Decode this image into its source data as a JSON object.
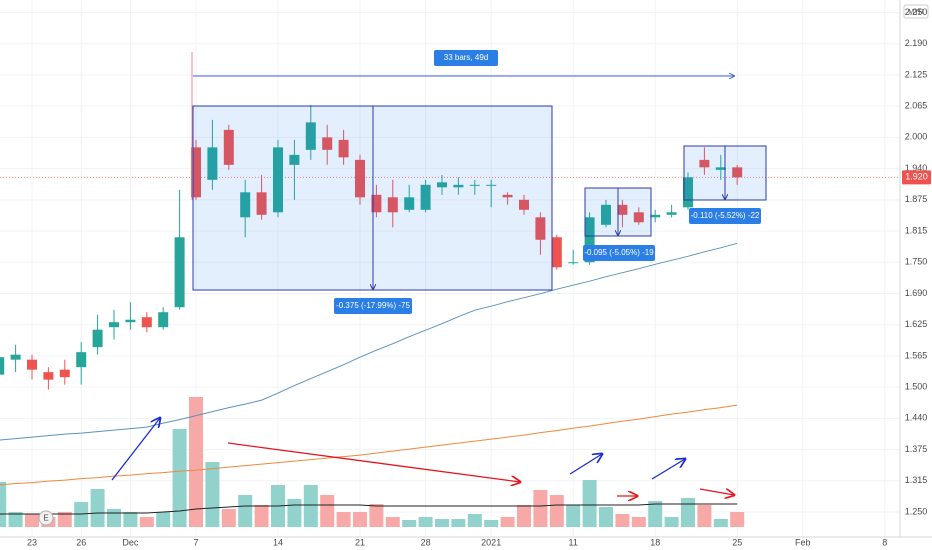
{
  "chart_data": {
    "type": "candlestick",
    "currency": "MYR",
    "categories": [
      null,
      null,
      "23",
      null,
      null,
      "26",
      null,
      null,
      "Dec",
      null,
      null,
      null,
      "7",
      null,
      null,
      null,
      null,
      "14",
      null,
      null,
      null,
      null,
      "21",
      null,
      null,
      null,
      "28",
      null,
      null,
      null,
      "2021",
      null,
      null,
      null,
      null,
      "11",
      null,
      null,
      null,
      null,
      "18",
      null,
      null,
      null,
      null,
      "25",
      null,
      null,
      null,
      "Feb",
      null,
      null,
      null,
      null,
      "8"
    ],
    "open": [
      1.525,
      1.555,
      1.555,
      1.53,
      1.535,
      1.54,
      1.58,
      1.62,
      1.63,
      1.64,
      1.62,
      1.66,
      1.98,
      1.915,
      2.015,
      1.84,
      1.89,
      1.85,
      1.945,
      1.975,
      2.0,
      1.995,
      1.955,
      1.885,
      1.88,
      1.855,
      1.855,
      1.9,
      1.9,
      1.905,
      1.905,
      1.885,
      1.875,
      1.84,
      1.8,
      1.75,
      1.75,
      1.825,
      1.865,
      1.85,
      1.84,
      1.845,
      1.86,
      1.955,
      1.935,
      1.94,
      null,
      null,
      null,
      null,
      null,
      null,
      null,
      null,
      null
    ],
    "high": [
      1.585,
      1.585,
      1.565,
      1.54,
      1.555,
      1.59,
      1.645,
      1.655,
      1.67,
      1.65,
      1.66,
      1.895,
      1.995,
      2.035,
      2.025,
      1.915,
      1.925,
      1.995,
      1.995,
      2.065,
      2.025,
      2.015,
      1.965,
      1.905,
      1.915,
      1.905,
      1.915,
      1.925,
      1.92,
      1.915,
      1.915,
      1.89,
      1.885,
      1.85,
      1.805,
      1.775,
      1.85,
      1.875,
      1.875,
      1.86,
      1.855,
      1.865,
      1.93,
      1.98,
      1.965,
      1.945,
      null,
      null,
      null,
      null,
      null,
      null,
      null,
      null,
      null
    ],
    "low": [
      1.48,
      1.53,
      1.515,
      1.495,
      1.505,
      1.505,
      1.565,
      1.595,
      1.615,
      1.61,
      1.615,
      1.655,
      1.875,
      1.895,
      1.935,
      1.8,
      1.835,
      1.84,
      1.875,
      1.955,
      1.945,
      1.945,
      1.865,
      1.84,
      1.82,
      1.85,
      1.85,
      1.885,
      1.885,
      1.885,
      1.86,
      1.865,
      1.845,
      1.765,
      1.735,
      1.745,
      1.745,
      1.82,
      1.82,
      1.825,
      1.83,
      1.84,
      1.855,
      1.925,
      1.915,
      1.905,
      null,
      null,
      null,
      null,
      null,
      null,
      null,
      null,
      null
    ],
    "close": [
      1.56,
      1.565,
      1.535,
      1.515,
      1.52,
      1.57,
      1.615,
      1.63,
      1.635,
      1.62,
      1.65,
      1.8,
      1.88,
      1.98,
      1.945,
      1.89,
      1.845,
      1.98,
      1.965,
      2.03,
      1.975,
      1.96,
      1.88,
      1.85,
      1.85,
      1.88,
      1.905,
      1.91,
      1.905,
      1.905,
      1.905,
      1.88,
      1.855,
      1.795,
      1.74,
      1.75,
      1.84,
      1.865,
      1.845,
      1.83,
      1.845,
      1.85,
      1.92,
      1.94,
      1.94,
      1.92,
      null,
      null,
      null,
      null,
      null,
      null,
      null,
      null,
      null
    ],
    "up_color": "#26a69a",
    "down_color": "#ef5350",
    "volume": [
      45,
      15,
      13,
      10,
      15,
      25,
      38,
      18,
      15,
      10,
      15,
      98,
      130,
      65,
      18,
      32,
      22,
      42,
      28,
      42,
      32,
      15,
      15,
      23,
      10,
      7,
      10,
      8,
      8,
      13,
      7,
      10,
      22,
      37,
      32,
      22,
      47,
      20,
      13,
      10,
      26,
      10,
      29,
      22,
      8,
      15,
      null,
      null,
      null,
      null,
      null,
      null,
      null,
      null,
      null
    ],
    "volume_up_color": "#92d2cc",
    "volume_down_color": "#f7a9a7",
    "volume_ylim": [
      0,
      140
    ],
    "moving_averages": [
      {
        "color": "#5a93bd",
        "axis": "price",
        "values": [
          1.394,
          1.397,
          1.4,
          1.403,
          1.406,
          1.408,
          1.411,
          1.414,
          1.417,
          1.42,
          1.428,
          1.435,
          1.443,
          1.451,
          1.459,
          1.466,
          1.474,
          1.488,
          1.503,
          1.517,
          1.531,
          1.545,
          1.56,
          1.574,
          1.587,
          1.601,
          1.614,
          1.627,
          1.641,
          1.654,
          1.662,
          1.671,
          1.679,
          1.687,
          1.696,
          1.704,
          1.712,
          1.721,
          1.729,
          1.737,
          1.746,
          1.754,
          1.762,
          1.771,
          1.779,
          1.788,
          null,
          null,
          null,
          null,
          null,
          null,
          null,
          null,
          null
        ]
      },
      {
        "color": "#f0883e",
        "axis": "price",
        "values": [
          1.304,
          1.307,
          1.309,
          1.312,
          1.314,
          1.317,
          1.319,
          1.322,
          1.324,
          1.327,
          1.329,
          1.332,
          1.334,
          1.337,
          1.34,
          1.343,
          1.346,
          1.349,
          1.352,
          1.355,
          1.358,
          1.361,
          1.364,
          1.368,
          1.372,
          1.376,
          1.38,
          1.384,
          1.388,
          1.392,
          1.396,
          1.4,
          1.404,
          1.409,
          1.413,
          1.418,
          1.422,
          1.427,
          1.432,
          1.436,
          1.441,
          1.446,
          1.45,
          1.455,
          1.459,
          1.464,
          null,
          null,
          null,
          null,
          null,
          null,
          null,
          null,
          null
        ]
      },
      {
        "color": "#222222",
        "axis": "volume",
        "values": [
          13,
          13,
          13,
          13,
          13,
          13,
          14,
          14,
          14,
          14,
          15,
          16,
          18,
          19,
          20,
          21,
          21,
          21,
          22,
          22,
          22,
          22,
          22,
          21,
          21,
          21,
          21,
          21,
          21,
          21,
          21,
          21,
          21,
          21,
          22,
          22,
          22,
          22,
          22,
          22,
          23,
          23,
          23,
          23,
          23,
          23,
          null,
          null,
          null,
          null,
          null,
          null,
          null,
          null,
          null
        ]
      }
    ],
    "ylim": [
      1.2,
      2.275
    ],
    "yticks": [
      {
        "value": 2.25,
        "label": "2.250"
      },
      {
        "value": 2.1875,
        "label": "2.190"
      },
      {
        "value": 2.125,
        "label": "2.125"
      },
      {
        "value": 2.0625,
        "label": "2.065"
      },
      {
        "value": 2.0,
        "label": "2.000"
      },
      {
        "value": 1.9375,
        "label": "1.940"
      },
      {
        "value": 1.875,
        "label": "1.875"
      },
      {
        "value": 1.8125,
        "label": "1.815"
      },
      {
        "value": 1.75,
        "label": "1.750"
      },
      {
        "value": 1.6875,
        "label": "1.690"
      },
      {
        "value": 1.625,
        "label": "1.625"
      },
      {
        "value": 1.5625,
        "label": "1.565"
      },
      {
        "value": 1.5,
        "label": "1.500"
      },
      {
        "value": 1.4375,
        "label": "1.440"
      },
      {
        "value": 1.375,
        "label": "1.375"
      },
      {
        "value": 1.3125,
        "label": "1.315"
      },
      {
        "value": 1.25,
        "label": "1.250"
      }
    ],
    "grid": true,
    "last_price": {
      "value": 1.92,
      "label": "1.920"
    },
    "last_price_color": "#ef5350",
    "measure_labels": [
      "33 bars, 49d",
      "-0.375 (-17.99%) -75",
      "-0.095 (-5.05%) -19",
      "-0.110 (-5.52%) -22"
    ],
    "earnings_marker": "E"
  }
}
